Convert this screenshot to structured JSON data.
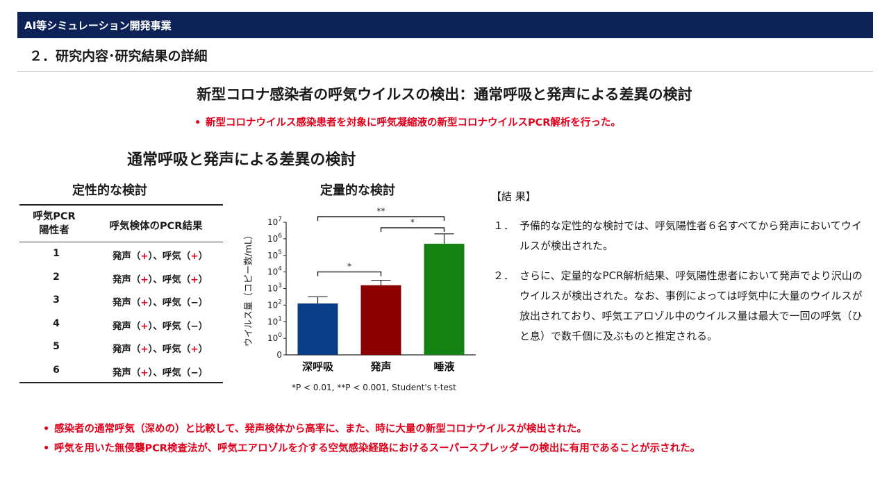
{
  "header": {
    "title": "AI等シミュレーション開発事業"
  },
  "section_title": "２．研究内容･研究結果の詳細",
  "main_title": "新型コロナ感染者の呼気ウイルスの検出：通常呼吸と発声による差異の検討",
  "sub_bullet": "新型コロナウイルス感染患者を対象に呼気凝縮液の新型コロナウイルスPCR解析を行った。",
  "subsection_title": "通常呼吸と発声による差異の検討",
  "qualitative": {
    "title": "定性的な検討",
    "header_col1_line1": "呼気PCR",
    "header_col1_line2": "陽性者",
    "header_col2": "呼気検体のPCR結果",
    "label_voice": "発声",
    "label_breath": "呼気",
    "rows": [
      {
        "id": "1",
        "voice_sign": "+",
        "breath_sign": "+"
      },
      {
        "id": "2",
        "voice_sign": "+",
        "breath_sign": "+"
      },
      {
        "id": "3",
        "voice_sign": "+",
        "breath_sign": "−"
      },
      {
        "id": "4",
        "voice_sign": "+",
        "breath_sign": "−"
      },
      {
        "id": "5",
        "voice_sign": "+",
        "breath_sign": "+"
      },
      {
        "id": "6",
        "voice_sign": "+",
        "breath_sign": "−"
      }
    ]
  },
  "quantitative": {
    "title": "定量的な検討",
    "footnote": "*P < 0.01, **P < 0.001, Student's t-test"
  },
  "chart_data": {
    "type": "bar",
    "ylabel": "ウイルス量（コピー数/mL）",
    "yscale": "log",
    "ylim": [
      0,
      7
    ],
    "yticks": [
      {
        "label": "0",
        "sup": ""
      },
      {
        "label": "10",
        "sup": "0"
      },
      {
        "label": "10",
        "sup": "1"
      },
      {
        "label": "10",
        "sup": "2"
      },
      {
        "label": "10",
        "sup": "3"
      },
      {
        "label": "10",
        "sup": "4"
      },
      {
        "label": "10",
        "sup": "5"
      },
      {
        "label": "10",
        "sup": "6"
      },
      {
        "label": "10",
        "sup": "7"
      }
    ],
    "categories": [
      "深呼吸",
      "発声",
      "唾液"
    ],
    "values_log10": [
      2.1,
      3.2,
      5.7
    ],
    "error_upper_log10": [
      2.5,
      3.5,
      6.3
    ],
    "colors": [
      "#0a3d87",
      "#8b0000",
      "#138213"
    ],
    "significance": [
      {
        "from": 0,
        "to": 1,
        "label": "*"
      },
      {
        "from": 1,
        "to": 2,
        "label": "*"
      },
      {
        "from": 0,
        "to": 2,
        "label": "**"
      }
    ]
  },
  "results": {
    "heading": "【結 果】",
    "items": [
      {
        "num": "１．",
        "text": "予備的な定性的な検討では、呼気陽性者６名すべてから発声においてウイルスが検出された。"
      },
      {
        "num": "２．",
        "text": "さらに、定量的なPCR解析結果、呼気陽性患者において発声でより沢山のウイルスが検出された。なお、事例によっては呼気中に大量のウイルスが放出されており、呼気エアロゾル中のウイルス量は最大で一回の呼気（ひと息）で数千個に及ぶものと推定される。"
      }
    ]
  },
  "conclusions": [
    "感染者の通常呼気（深めの）と比較して、発声検体から高率に、また、時に大量の新型コロナウイルスが検出された。",
    "呼気を用いた無侵襲PCR検査法が、呼気エアロゾルを介する空気感染経路におけるスーパースプレッダーの検出に有用であることが示された。"
  ],
  "colors": {
    "header_bg": "#0d2257",
    "accent_red": "#e0001b"
  }
}
